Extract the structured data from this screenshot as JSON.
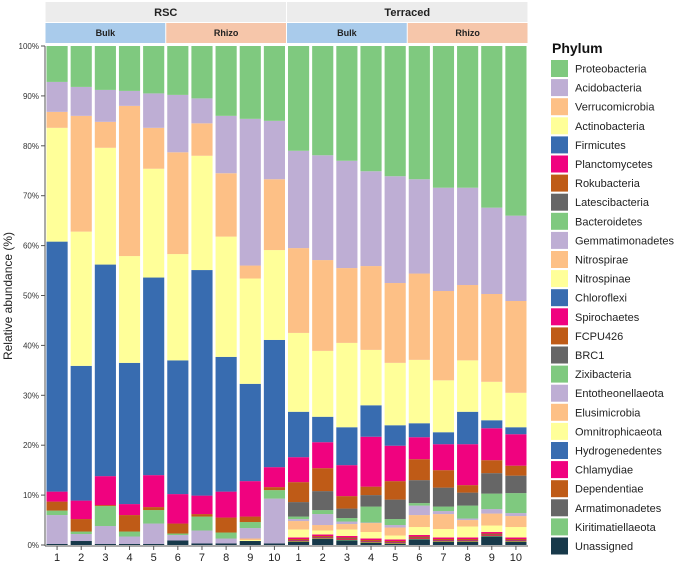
{
  "chart_data": {
    "type": "bar",
    "stacked": true,
    "ylabel": "Relative abundance (%)",
    "ylim": [
      0,
      100
    ],
    "yticks": [
      "0%",
      "10%",
      "20%",
      "30%",
      "40%",
      "50%",
      "60%",
      "70%",
      "80%",
      "90%",
      "100%"
    ],
    "legend_title": "Phylum",
    "legend_position": "right",
    "facets": [
      {
        "label": "RSC",
        "groups": [
          {
            "label": "Bulk",
            "color": "#a9cbeb"
          },
          {
            "label": "Rhizo",
            "color": "#f6c6aa"
          }
        ]
      },
      {
        "label": "Terraced",
        "groups": [
          {
            "label": "Bulk",
            "color": "#a9cbeb"
          },
          {
            "label": "Rhizo",
            "color": "#f6c6aa"
          }
        ]
      }
    ],
    "categories": [
      "1",
      "2",
      "3",
      "4",
      "5",
      "6",
      "7",
      "8",
      "9",
      "10",
      "1",
      "2",
      "3",
      "4",
      "5",
      "6",
      "7",
      "8",
      "9",
      "10"
    ],
    "series": [
      {
        "name": "Proteobacteria",
        "color": "#7fc97f",
        "values": [
          7.2,
          8.2,
          8.8,
          9.0,
          9.5,
          9.8,
          10.5,
          14.0,
          14.6,
          15.0,
          21.0,
          21.9,
          23.0,
          25.1,
          26.1,
          26.7,
          28.4,
          28.4,
          32.4,
          34.0
        ]
      },
      {
        "name": "Acidobacteria",
        "color": "#beaed4",
        "values": [
          6.0,
          5.8,
          6.4,
          3.0,
          6.9,
          11.5,
          5.0,
          11.5,
          29.4,
          11.7,
          19.5,
          21.0,
          21.5,
          19.0,
          21.4,
          18.9,
          20.7,
          19.5,
          17.3,
          17.1
        ]
      },
      {
        "name": "Verrucomicrobia",
        "color": "#fdc086",
        "values": [
          3.2,
          23.2,
          5.2,
          30.1,
          8.2,
          20.4,
          6.5,
          12.7,
          2.6,
          14.2,
          17.0,
          18.2,
          15.0,
          16.8,
          16.0,
          17.3,
          17.9,
          15.1,
          17.6,
          18.4
        ]
      },
      {
        "name": "Actinobacteria",
        "color": "#ffff99",
        "values": [
          22.8,
          26.9,
          23.4,
          21.4,
          21.8,
          21.3,
          22.9,
          24.1,
          21.1,
          18.0,
          15.8,
          13.2,
          16.9,
          11.1,
          12.5,
          12.7,
          10.4,
          10.3,
          7.7,
          6.9
        ]
      },
      {
        "name": "Firmicutes",
        "color": "#386cb0",
        "values": [
          50.1,
          27.0,
          42.4,
          28.3,
          39.6,
          26.8,
          45.2,
          27.0,
          19.5,
          25.5,
          9.1,
          5.1,
          7.6,
          6.3,
          4.1,
          2.8,
          2.4,
          6.5,
          1.6,
          1.4
        ]
      },
      {
        "name": "Planctomycetes",
        "color": "#f0027f",
        "values": [
          2.0,
          3.7,
          5.8,
          2.2,
          6.4,
          5.9,
          3.7,
          5.2,
          7.1,
          4.0,
          5.0,
          5.2,
          6.2,
          10.0,
          7.1,
          4.4,
          5.2,
          8.2,
          6.4,
          6.3
        ]
      },
      {
        "name": "Rokubacteria",
        "color": "#bf5b17",
        "values": [
          1.8,
          2.5,
          0.2,
          3.3,
          0.6,
          2.0,
          0.5,
          3.0,
          1.1,
          0.6,
          4.0,
          4.6,
          2.5,
          1.7,
          3.7,
          4.2,
          3.5,
          1.5,
          2.6,
          2.0
        ]
      },
      {
        "name": "Latescibacteria",
        "color": "#666666",
        "values": [
          0,
          0,
          0,
          0,
          0,
          0,
          0,
          0,
          0,
          0,
          2.9,
          3.8,
          1.9,
          2.3,
          3.9,
          4.6,
          3.8,
          2.6,
          4.1,
          3.5
        ]
      },
      {
        "name": "Bacteroidetes",
        "color": "#7fc97f",
        "values": [
          0.9,
          0.5,
          4.0,
          1.0,
          2.7,
          0.3,
          2.8,
          1.2,
          1.2,
          1.7,
          0.5,
          0.8,
          0.7,
          3.2,
          1.2,
          0.5,
          0.9,
          2.6,
          3.1,
          4.0
        ]
      },
      {
        "name": "Gemmatimonadetes",
        "color": "#beaed4",
        "values": [
          5.8,
          1.4,
          3.6,
          1.5,
          4.1,
          1.1,
          2.6,
          1.0,
          2.1,
          9.0,
          0.4,
          2.2,
          0.5,
          0.1,
          0.5,
          1.9,
          0.6,
          0.3,
          0.9,
          0.6
        ]
      },
      {
        "name": "Nitrospirae",
        "color": "#fdc086",
        "values": [
          0,
          0,
          0,
          0,
          0,
          0,
          0,
          0,
          0.3,
          0,
          1.7,
          1.1,
          1.1,
          1.8,
          1.6,
          2.4,
          3.0,
          1.3,
          2.4,
          2.2
        ]
      },
      {
        "name": "Nitrospinae",
        "color": "#ffff99",
        "values": [
          0,
          0,
          0,
          0,
          0,
          0,
          0,
          0,
          0.2,
          0,
          1.6,
          0.8,
          1.3,
          1.3,
          0.8,
          1.6,
          1.7,
          2.2,
          1.3,
          2.1
        ]
      },
      {
        "name": "Chloroflexi",
        "color": "#386cb0",
        "values": [
          0,
          0,
          0,
          0,
          0,
          0,
          0,
          0,
          0,
          0,
          0,
          0,
          0,
          0,
          0,
          0,
          0,
          0,
          0,
          0
        ]
      },
      {
        "name": "Spirochaetes",
        "color": "#f0027f",
        "values": [
          0,
          0,
          0,
          0,
          0,
          0,
          0,
          0,
          0,
          0,
          0.3,
          0.3,
          0.3,
          0.3,
          0.3,
          0.3,
          0.3,
          0.3,
          0.3,
          0.3
        ]
      },
      {
        "name": "FCPU426",
        "color": "#bf5b17",
        "values": [
          0,
          0,
          0,
          0,
          0,
          0,
          0,
          0,
          0,
          0,
          0.2,
          0.2,
          0.2,
          0.2,
          0.2,
          0.2,
          0.2,
          0.2,
          0.2,
          0.2
        ]
      },
      {
        "name": "BRC1",
        "color": "#666666",
        "values": [
          0,
          0,
          0,
          0,
          0,
          0,
          0,
          0,
          0,
          0,
          0.1,
          0.1,
          0.1,
          0.1,
          0.1,
          0.1,
          0.1,
          0.1,
          0.1,
          0.1
        ]
      },
      {
        "name": "Zixibacteria",
        "color": "#7fc97f",
        "values": [
          0,
          0,
          0,
          0,
          0,
          0,
          0,
          0,
          0,
          0,
          0,
          0,
          0,
          0,
          0,
          0,
          0,
          0,
          0,
          0
        ]
      },
      {
        "name": "Entotheonellaeota",
        "color": "#beaed4",
        "values": [
          0,
          0,
          0,
          0,
          0,
          0,
          0,
          0,
          0,
          0,
          0,
          0,
          0,
          0,
          0,
          0,
          0,
          0,
          0,
          0
        ]
      },
      {
        "name": "Elusimicrobia",
        "color": "#fdc086",
        "values": [
          0,
          0,
          0,
          0,
          0,
          0,
          0,
          0,
          0,
          0,
          0,
          0,
          0,
          0,
          0,
          0,
          0,
          0,
          0,
          0
        ]
      },
      {
        "name": "Omnitrophicaeota",
        "color": "#ffff99",
        "values": [
          0,
          0,
          0,
          0,
          0,
          0,
          0,
          0,
          0,
          0,
          0,
          0,
          0,
          0,
          0,
          0,
          0,
          0,
          0,
          0
        ]
      },
      {
        "name": "Hydrogenedentes",
        "color": "#386cb0",
        "values": [
          0,
          0,
          0,
          0,
          0,
          0,
          0,
          0,
          0,
          0,
          0,
          0,
          0,
          0,
          0,
          0,
          0,
          0,
          0,
          0
        ]
      },
      {
        "name": "Chlamydiae",
        "color": "#f0027f",
        "values": [
          0,
          0,
          0,
          0,
          0,
          0,
          0,
          0,
          0,
          0,
          0.1,
          0.1,
          0.1,
          0.1,
          0.1,
          0.1,
          0.1,
          0.1,
          0.1,
          0.1
        ]
      },
      {
        "name": "Dependentiae",
        "color": "#bf5b17",
        "values": [
          0,
          0,
          0,
          0,
          0,
          0,
          0,
          0,
          0,
          0,
          0.1,
          0.1,
          0.1,
          0.1,
          0.1,
          0.1,
          0.1,
          0.1,
          0.1,
          0.1
        ]
      },
      {
        "name": "Armatimonadetes",
        "color": "#666666",
        "values": [
          0,
          0,
          0,
          0,
          0,
          0,
          0,
          0,
          0,
          0,
          0,
          0,
          0,
          0,
          0,
          0,
          0,
          0,
          0,
          0
        ]
      },
      {
        "name": "Kiritimatiellaeota",
        "color": "#7fc97f",
        "values": [
          0,
          0,
          0,
          0,
          0,
          0,
          0,
          0,
          0,
          0,
          0.1,
          0.1,
          0.1,
          0.1,
          0.1,
          0.1,
          0.1,
          0.1,
          0.1,
          0.1
        ]
      },
      {
        "name": "Unassigned",
        "color": "#17394a",
        "values": [
          0.2,
          0.8,
          0.2,
          0.2,
          0.2,
          0.9,
          0.3,
          0.3,
          0.8,
          0.3,
          0.6,
          1.2,
          0.9,
          0.4,
          0.2,
          1.1,
          0.6,
          0.6,
          1.7,
          0.6
        ]
      }
    ]
  }
}
